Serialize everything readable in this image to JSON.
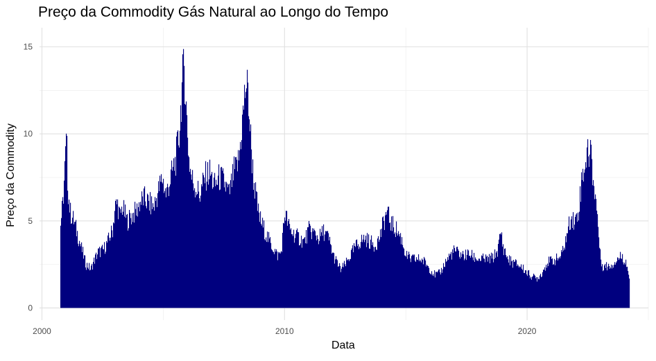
{
  "chart_data": {
    "type": "bar",
    "title": "Preço da Commodity Gás Natural ao Longo do Tempo",
    "xlabel": "Data",
    "ylabel": "Preço da Commodity",
    "xlim": [
      1999.9,
      2025.0
    ],
    "ylim": [
      -0.7,
      16.1
    ],
    "x_ticks": [
      {
        "value": 2000,
        "label": "2000"
      },
      {
        "value": 2010,
        "label": "2010"
      },
      {
        "value": 2020,
        "label": "2020"
      }
    ],
    "y_ticks": [
      {
        "value": 0,
        "label": "0"
      },
      {
        "value": 5,
        "label": "5"
      },
      {
        "value": 10,
        "label": "10"
      },
      {
        "value": 15,
        "label": "15"
      }
    ],
    "grid": true,
    "bar_color": "#00007F",
    "series": [
      {
        "x": [
          2000.75,
          2000.85,
          2000.95,
          2001.0,
          2001.05,
          2001.15,
          2001.3,
          2001.5,
          2001.7,
          2001.8,
          2001.9,
          2002.0,
          2002.1,
          2002.3,
          2002.5,
          2002.7,
          2002.9,
          2003.0,
          2003.1,
          2003.2,
          2003.3,
          2003.5,
          2003.7,
          2003.9,
          2004.0,
          2004.2,
          2004.4,
          2004.6,
          2004.8,
          2004.95,
          2005.1,
          2005.3,
          2005.5,
          2005.65,
          2005.75,
          2005.85,
          2005.95,
          2006.05,
          2006.15,
          2006.3,
          2006.5,
          2006.7,
          2006.9,
          2007.1,
          2007.3,
          2007.5,
          2007.7,
          2007.9,
          2008.0,
          2008.1,
          2008.2,
          2008.3,
          2008.4,
          2008.5,
          2008.6,
          2008.7,
          2008.8,
          2008.9,
          2009.0,
          2009.15,
          2009.3,
          2009.5,
          2009.7,
          2009.85,
          2010.0,
          2010.2,
          2010.4,
          2010.6,
          2010.8,
          2011.0,
          2011.2,
          2011.4,
          2011.6,
          2011.8,
          2012.0,
          2012.15,
          2012.3,
          2012.5,
          2012.7,
          2012.9,
          2013.1,
          2013.3,
          2013.5,
          2013.7,
          2013.9,
          2014.05,
          2014.2,
          2014.4,
          2014.6,
          2014.8,
          2015.0,
          2015.2,
          2015.4,
          2015.6,
          2015.8,
          2016.0,
          2016.2,
          2016.4,
          2016.6,
          2016.8,
          2017.0,
          2017.2,
          2017.4,
          2017.6,
          2017.8,
          2018.0,
          2018.2,
          2018.4,
          2018.6,
          2018.8,
          2018.9,
          2019.0,
          2019.2,
          2019.4,
          2019.6,
          2019.8,
          2020.0,
          2020.2,
          2020.4,
          2020.6,
          2020.8,
          2021.0,
          2021.2,
          2021.4,
          2021.6,
          2021.8,
          2021.95,
          2022.1,
          2022.25,
          2022.4,
          2022.5,
          2022.6,
          2022.7,
          2022.8,
          2022.9,
          2023.0,
          2023.1,
          2023.3,
          2023.5,
          2023.7,
          2023.9,
          2024.1,
          2024.2
        ],
        "values": [
          4.8,
          6.0,
          8.5,
          9.8,
          7.0,
          5.5,
          5.0,
          4.0,
          3.0,
          2.5,
          2.4,
          2.2,
          2.6,
          3.2,
          3.3,
          3.8,
          4.5,
          5.8,
          6.0,
          5.2,
          5.8,
          5.0,
          5.3,
          5.6,
          6.0,
          6.3,
          6.0,
          5.8,
          6.8,
          7.5,
          6.5,
          7.5,
          8.5,
          10.0,
          12.5,
          14.0,
          11.0,
          8.5,
          7.5,
          7.0,
          6.5,
          7.5,
          7.8,
          7.0,
          7.5,
          7.2,
          6.5,
          7.8,
          8.0,
          8.5,
          10.0,
          11.5,
          13.0,
          12.0,
          9.5,
          7.5,
          6.5,
          5.5,
          5.0,
          4.5,
          4.0,
          3.5,
          3.0,
          3.2,
          5.5,
          4.5,
          4.2,
          4.0,
          3.8,
          4.5,
          4.3,
          4.0,
          4.4,
          4.0,
          3.0,
          2.6,
          2.2,
          2.5,
          3.0,
          3.5,
          3.8,
          4.0,
          3.8,
          3.6,
          4.0,
          4.8,
          5.5,
          4.8,
          4.5,
          4.0,
          3.0,
          2.8,
          2.8,
          2.8,
          2.6,
          2.2,
          1.9,
          2.0,
          2.6,
          3.0,
          3.3,
          3.1,
          3.0,
          3.1,
          2.9,
          2.8,
          2.8,
          2.8,
          2.9,
          3.4,
          4.4,
          3.5,
          2.8,
          2.6,
          2.5,
          2.3,
          2.0,
          1.8,
          1.7,
          2.0,
          2.6,
          2.7,
          2.8,
          3.0,
          4.0,
          5.3,
          4.9,
          5.5,
          7.5,
          8.5,
          8.8,
          9.2,
          7.5,
          6.5,
          5.0,
          3.0,
          2.4,
          2.4,
          2.5,
          2.8,
          3.0,
          2.5,
          1.7
        ]
      }
    ]
  }
}
